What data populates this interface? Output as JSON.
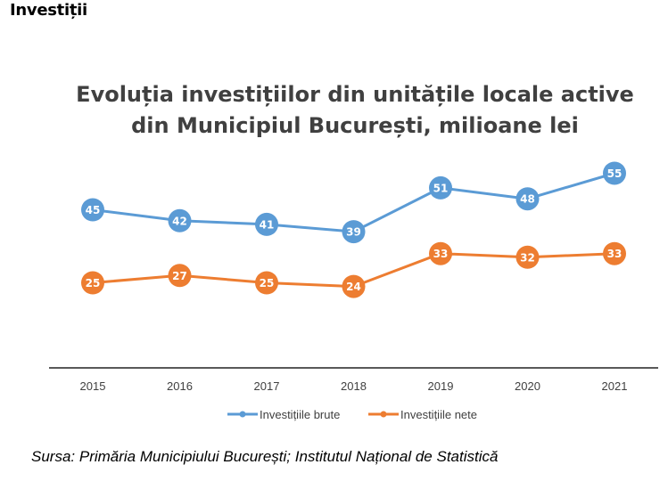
{
  "heading": "Investiții",
  "source": "Sursa: Primăria Municipiului București; Institutul Național de Statistică",
  "chart_data": {
    "type": "line",
    "title": "Evoluția investițiilor din unitățile locale active din Municipiul București, milioane lei",
    "title_lines": [
      "Evoluția investițiilor din unitățile locale active",
      "din Municipiul București, milioane lei"
    ],
    "xlabel": "",
    "ylabel": "",
    "categories": [
      "2015",
      "2016",
      "2017",
      "2018",
      "2019",
      "2020",
      "2021"
    ],
    "series": [
      {
        "name": "Investițiile brute",
        "color": "#5B9BD5",
        "values": [
          45,
          42,
          41,
          39,
          51,
          48,
          55
        ]
      },
      {
        "name": "Investițiile nete",
        "color": "#ED7D31",
        "values": [
          25,
          27,
          25,
          24,
          33,
          32,
          33
        ]
      }
    ],
    "ylim": [
      0,
      60
    ],
    "grid": false,
    "y_axis_visible": false,
    "data_labels": true,
    "legend_position": "bottom"
  }
}
